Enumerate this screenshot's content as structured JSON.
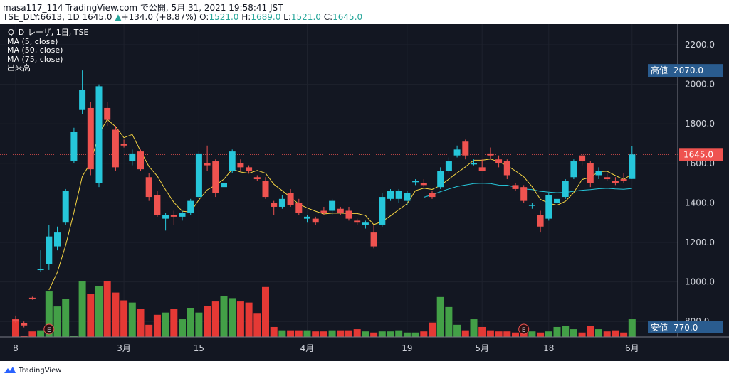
{
  "header": {
    "line1": "masa117_114 TradingView.com で公開, 5月 31, 2021 19:58:41 JST",
    "line2_prefix": "TSE_DLY:6613, 1D 1645.0",
    "change_icon": "triangle-up-icon",
    "change_symbol": "▲",
    "change": "+134.0 (+8.87%)",
    "o_label": "O:",
    "o_value": "1521.0",
    "h_label": "H:",
    "h_value": "1689.0",
    "l_label": "L:",
    "l_value": "1521.0",
    "c_label": "C:",
    "c_value": "1645.0"
  },
  "legend": {
    "symbol": "Ｑ Ｄ レーザ, 1日, TSE",
    "ma5": "MA (5, close)",
    "ma50": "MA (50, close)",
    "ma75": "MA (75, close)",
    "volume": "出来高"
  },
  "footer": {
    "brand": "TradingView",
    "logo_icon": "tradingview-logo-icon"
  },
  "colors": {
    "up": "#26c6da",
    "down": "#ef5350",
    "vol_up": "#43a047",
    "vol_down": "#e53935",
    "ma5": "#f5d442",
    "ma50": "#26c6da",
    "bg": "#131722",
    "price_box": "#ef5350",
    "high_box": "#2a5c8f"
  },
  "chart_data": {
    "type": "candlestick",
    "symbol": "TSE_DLY:6613",
    "interval": "1D",
    "ylim": [
      700,
      2300
    ],
    "y_ticks": [
      2200,
      2000,
      1800,
      1600,
      1400,
      1200,
      1000,
      800
    ],
    "x_ticks": [
      {
        "label": "8",
        "index": 0
      },
      {
        "label": "3月",
        "index": 13
      },
      {
        "label": "15",
        "index": 22
      },
      {
        "label": "4月",
        "index": 35
      },
      {
        "label": "19",
        "index": 47
      },
      {
        "label": "5月",
        "index": 56
      },
      {
        "label": "18",
        "index": 64
      },
      {
        "label": "6月",
        "index": 74
      }
    ],
    "current_price": "1645.0",
    "high_label": "高値",
    "high_value": "2070.0",
    "low_label": "安値",
    "low_value": "770.0",
    "earnings_markers": [
      {
        "index": 4,
        "label": "E"
      },
      {
        "index": 61,
        "label": "E"
      }
    ],
    "candles": [
      {
        "o": 810,
        "h": 830,
        "l": 790,
        "c": 800
      },
      {
        "o": 790,
        "h": 800,
        "l": 770,
        "c": 780
      },
      {
        "o": 920,
        "h": 925,
        "l": 910,
        "c": 918
      },
      {
        "o": 1060,
        "h": 1160,
        "l": 1050,
        "c": 1065
      },
      {
        "o": 1090,
        "h": 1290,
        "l": 1060,
        "c": 1230
      },
      {
        "o": 1180,
        "h": 1280,
        "l": 1160,
        "c": 1250
      },
      {
        "o": 1300,
        "h": 1470,
        "l": 1290,
        "c": 1460
      },
      {
        "o": 1610,
        "h": 1780,
        "l": 1600,
        "c": 1760
      },
      {
        "o": 1870,
        "h": 2070,
        "l": 1850,
        "c": 1970
      },
      {
        "o": 1880,
        "h": 1910,
        "l": 1540,
        "c": 1570
      },
      {
        "o": 1500,
        "h": 2000,
        "l": 1480,
        "c": 1990
      },
      {
        "o": 1880,
        "h": 1910,
        "l": 1790,
        "c": 1820
      },
      {
        "o": 1770,
        "h": 1790,
        "l": 1560,
        "c": 1580
      },
      {
        "o": 1700,
        "h": 1720,
        "l": 1680,
        "c": 1690
      },
      {
        "o": 1610,
        "h": 1670,
        "l": 1590,
        "c": 1650
      },
      {
        "o": 1660,
        "h": 1670,
        "l": 1560,
        "c": 1570
      },
      {
        "o": 1530,
        "h": 1550,
        "l": 1410,
        "c": 1430
      },
      {
        "o": 1440,
        "h": 1460,
        "l": 1330,
        "c": 1340
      },
      {
        "o": 1320,
        "h": 1350,
        "l": 1260,
        "c": 1340
      },
      {
        "o": 1340,
        "h": 1360,
        "l": 1290,
        "c": 1330
      },
      {
        "o": 1330,
        "h": 1360,
        "l": 1310,
        "c": 1350
      },
      {
        "o": 1350,
        "h": 1420,
        "l": 1340,
        "c": 1410
      },
      {
        "o": 1430,
        "h": 1660,
        "l": 1420,
        "c": 1650
      },
      {
        "o": 1600,
        "h": 1690,
        "l": 1560,
        "c": 1590
      },
      {
        "o": 1610,
        "h": 1620,
        "l": 1430,
        "c": 1450
      },
      {
        "o": 1480,
        "h": 1510,
        "l": 1470,
        "c": 1500
      },
      {
        "o": 1560,
        "h": 1670,
        "l": 1550,
        "c": 1660
      },
      {
        "o": 1600,
        "h": 1620,
        "l": 1560,
        "c": 1580
      },
      {
        "o": 1580,
        "h": 1590,
        "l": 1550,
        "c": 1560
      },
      {
        "o": 1530,
        "h": 1540,
        "l": 1510,
        "c": 1520
      },
      {
        "o": 1510,
        "h": 1530,
        "l": 1420,
        "c": 1430
      },
      {
        "o": 1400,
        "h": 1410,
        "l": 1340,
        "c": 1380
      },
      {
        "o": 1380,
        "h": 1440,
        "l": 1370,
        "c": 1420
      },
      {
        "o": 1450,
        "h": 1470,
        "l": 1380,
        "c": 1390
      },
      {
        "o": 1400,
        "h": 1420,
        "l": 1340,
        "c": 1350
      },
      {
        "o": 1320,
        "h": 1340,
        "l": 1300,
        "c": 1330
      },
      {
        "o": 1320,
        "h": 1330,
        "l": 1290,
        "c": 1300
      },
      {
        "o": 1360,
        "h": 1380,
        "l": 1340,
        "c": 1350
      },
      {
        "o": 1360,
        "h": 1420,
        "l": 1340,
        "c": 1410
      },
      {
        "o": 1370,
        "h": 1380,
        "l": 1340,
        "c": 1350
      },
      {
        "o": 1360,
        "h": 1380,
        "l": 1310,
        "c": 1320
      },
      {
        "o": 1310,
        "h": 1320,
        "l": 1290,
        "c": 1300
      },
      {
        "o": 1290,
        "h": 1310,
        "l": 1270,
        "c": 1300
      },
      {
        "o": 1250,
        "h": 1290,
        "l": 1170,
        "c": 1180
      },
      {
        "o": 1290,
        "h": 1450,
        "l": 1280,
        "c": 1430
      },
      {
        "o": 1420,
        "h": 1470,
        "l": 1410,
        "c": 1460
      },
      {
        "o": 1420,
        "h": 1470,
        "l": 1400,
        "c": 1460
      },
      {
        "o": 1410,
        "h": 1460,
        "l": 1390,
        "c": 1450
      },
      {
        "o": 1510,
        "h": 1520,
        "l": 1490,
        "c": 1510
      },
      {
        "o": 1500,
        "h": 1520,
        "l": 1480,
        "c": 1490
      },
      {
        "o": 1450,
        "h": 1460,
        "l": 1420,
        "c": 1430
      },
      {
        "o": 1480,
        "h": 1580,
        "l": 1470,
        "c": 1560
      },
      {
        "o": 1560,
        "h": 1630,
        "l": 1550,
        "c": 1610
      },
      {
        "o": 1640,
        "h": 1690,
        "l": 1630,
        "c": 1670
      },
      {
        "o": 1710,
        "h": 1720,
        "l": 1620,
        "c": 1640
      },
      {
        "o": 1600,
        "h": 1620,
        "l": 1590,
        "c": 1600
      },
      {
        "o": 1580,
        "h": 1620,
        "l": 1560,
        "c": 1560
      },
      {
        "o": 1650,
        "h": 1680,
        "l": 1620,
        "c": 1640
      },
      {
        "o": 1620,
        "h": 1640,
        "l": 1580,
        "c": 1600
      },
      {
        "o": 1610,
        "h": 1620,
        "l": 1520,
        "c": 1540
      },
      {
        "o": 1490,
        "h": 1500,
        "l": 1460,
        "c": 1470
      },
      {
        "o": 1480,
        "h": 1490,
        "l": 1400,
        "c": 1410
      },
      {
        "o": 1390,
        "h": 1400,
        "l": 1370,
        "c": 1390
      },
      {
        "o": 1340,
        "h": 1360,
        "l": 1250,
        "c": 1280
      },
      {
        "o": 1320,
        "h": 1450,
        "l": 1310,
        "c": 1440
      },
      {
        "o": 1400,
        "h": 1480,
        "l": 1390,
        "c": 1420
      },
      {
        "o": 1430,
        "h": 1520,
        "l": 1420,
        "c": 1510
      },
      {
        "o": 1530,
        "h": 1620,
        "l": 1520,
        "c": 1610
      },
      {
        "o": 1640,
        "h": 1650,
        "l": 1590,
        "c": 1610
      },
      {
        "o": 1600,
        "h": 1610,
        "l": 1480,
        "c": 1500
      },
      {
        "o": 1540,
        "h": 1580,
        "l": 1520,
        "c": 1560
      },
      {
        "o": 1530,
        "h": 1550,
        "l": 1510,
        "c": 1520
      },
      {
        "o": 1510,
        "h": 1530,
        "l": 1490,
        "c": 1500
      },
      {
        "o": 1520,
        "h": 1550,
        "l": 1500,
        "c": 1510
      },
      {
        "o": 1521,
        "h": 1689,
        "l": 1521,
        "c": 1645
      }
    ],
    "volume_max": 100,
    "volumes": [
      32,
      2,
      10,
      12,
      82,
      55,
      68,
      2,
      100,
      78,
      92,
      100,
      80,
      66,
      62,
      50,
      22,
      40,
      44,
      50,
      32,
      52,
      44,
      56,
      64,
      74,
      70,
      64,
      62,
      42,
      90,
      18,
      12,
      12,
      12,
      12,
      10,
      10,
      12,
      12,
      12,
      14,
      10,
      8,
      10,
      10,
      12,
      8,
      8,
      10,
      26,
      72,
      54,
      22,
      12,
      32,
      18,
      12,
      10,
      10,
      8,
      8,
      10,
      8,
      10,
      18,
      20,
      14,
      8,
      20,
      14,
      10,
      12,
      8,
      32
    ]
  }
}
